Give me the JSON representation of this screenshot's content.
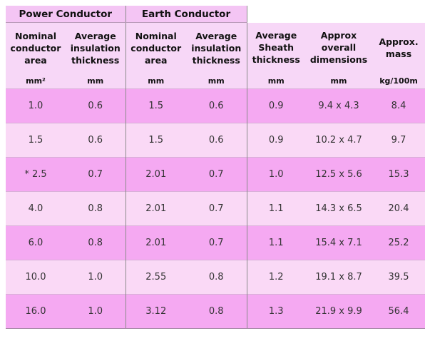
{
  "groups": {
    "power": "Power Conductor",
    "earth": "Earth Conductor"
  },
  "headers": {
    "power_area": "Nominal conductor area",
    "power_insulation": "Average insulation thickness",
    "earth_area": "Nominal conductor area",
    "earth_insulation": "Average insulation thickness",
    "sheath": "Average Sheath thickness",
    "dimensions": "Approx overall dimensions",
    "mass": "Approx. mass"
  },
  "units": [
    "mm²",
    "mm",
    "mm",
    "mm",
    "mm",
    "mm",
    "kg/100m"
  ],
  "rows": [
    [
      "1.0",
      "0.6",
      "1.5",
      "0.6",
      "0.9",
      "9.4 x 4.3",
      "8.4"
    ],
    [
      "1.5",
      "0.6",
      "1.5",
      "0.6",
      "0.9",
      "10.2 x 4.7",
      "9.7"
    ],
    [
      "* 2.5",
      "0.7",
      "2.01",
      "0.7",
      "1.0",
      "12.5 x 5.6",
      "15.3"
    ],
    [
      "4.0",
      "0.8",
      "2.01",
      "0.7",
      "1.1",
      "14.3 x 6.5",
      "20.4"
    ],
    [
      "6.0",
      "0.8",
      "2.01",
      "0.7",
      "1.1",
      "15.4 x 7.1",
      "25.2"
    ],
    [
      "10.0",
      "1.0",
      "2.55",
      "0.8",
      "1.2",
      "19.1 x 8.7",
      "39.5"
    ],
    [
      "16.0",
      "1.0",
      "3.12",
      "0.8",
      "1.3",
      "21.9 x 9.9",
      "56.4"
    ]
  ],
  "colors": {
    "row_dark": "#f5a9f2",
    "row_light": "#fad9f6",
    "header_bg": "#f7d7f7",
    "group_bg": "#f4c5f4"
  }
}
